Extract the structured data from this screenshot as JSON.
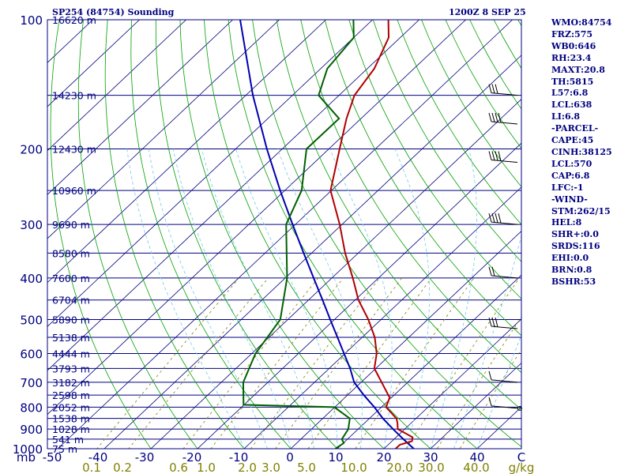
{
  "header": {
    "station": "SP254 (84754) Sounding",
    "time": "1200Z  8 SEP 25"
  },
  "indices": [
    "WMO:84754",
    "FRZ:575",
    "WB0:646",
    "RH:23.4",
    "MAXT:20.8",
    "TH:5815",
    "L57:6.8",
    "LCL:638",
    "LI:6.8",
    "-PARCEL-",
    "CAPE:45",
    "CINH:38125",
    "LCL:570",
    "CAP:6.8",
    "LFC:-1",
    "-WIND-",
    "STM:262/15",
    "HEL:8",
    "SHR+:0.0",
    "SRDS:116",
    "EHI:0.0",
    "BRN:0.8",
    "BSHR:53"
  ],
  "colors": {
    "isobar": "#000080",
    "isotherm": "#000080",
    "dry_adiabat": "#00a000",
    "moist_adiabat": "#87ceeb",
    "mixing_ratio": "#808000",
    "temperature": "#b00000",
    "dewpoint": "#006000",
    "parcel": "#0000b0",
    "text": "#000080",
    "mixing_label": "#808000"
  },
  "chart_data": {
    "type": "line",
    "pressure_ticks": [
      "100",
      "200",
      "300",
      "400",
      "500",
      "600",
      "700",
      "800",
      "900",
      "1000"
    ],
    "height_labels": [
      {
        "p": 100,
        "label": "16620 m"
      },
      {
        "p": 150,
        "label": "14230 m"
      },
      {
        "p": 200,
        "label": "12430 m"
      },
      {
        "p": 250,
        "label": "10960 m"
      },
      {
        "p": 300,
        "label": "9690 m"
      },
      {
        "p": 350,
        "label": "8580 m"
      },
      {
        "p": 400,
        "label": "7600 m"
      },
      {
        "p": 450,
        "label": "6704 m"
      },
      {
        "p": 500,
        "label": "5890 m"
      },
      {
        "p": 550,
        "label": "5138 m"
      },
      {
        "p": 600,
        "label": "4444 m"
      },
      {
        "p": 650,
        "label": "3793 m"
      },
      {
        "p": 700,
        "label": "3182 m"
      },
      {
        "p": 750,
        "label": "2598 m"
      },
      {
        "p": 800,
        "label": "2052 m"
      },
      {
        "p": 850,
        "label": "1538 m"
      },
      {
        "p": 900,
        "label": "1028 m"
      },
      {
        "p": 950,
        "label": "541 m"
      },
      {
        "p": 1000,
        "label": "75 m"
      }
    ],
    "temp_ticks": [
      "mb",
      "-50",
      "-40",
      "-30",
      "-20",
      "-10",
      "0",
      "10",
      "20",
      "30",
      "40",
      "C"
    ],
    "mixing_ratio_ticks": [
      "0.1",
      "0.2",
      "0.6",
      "1.0",
      "2.0",
      "3.0",
      "5.0",
      "10.0",
      "20.0",
      "30.0",
      "40.0",
      "g/kg"
    ],
    "temperature_profile": [
      {
        "p": 1000,
        "t": 22.5
      },
      {
        "p": 979,
        "t": 22.5
      },
      {
        "p": 960,
        "t": 24.3
      },
      {
        "p": 940,
        "t": 23.5
      },
      {
        "p": 900,
        "t": 18.5
      },
      {
        "p": 870,
        "t": 17
      },
      {
        "p": 850,
        "t": 15.8
      },
      {
        "p": 800,
        "t": 11
      },
      {
        "p": 760,
        "t": 9.6
      },
      {
        "p": 700,
        "t": 4.4
      },
      {
        "p": 650,
        "t": -0.3
      },
      {
        "p": 600,
        "t": -3.2
      },
      {
        "p": 550,
        "t": -7.3
      },
      {
        "p": 500,
        "t": -12.7
      },
      {
        "p": 450,
        "t": -19.3
      },
      {
        "p": 400,
        "t": -25.5
      },
      {
        "p": 350,
        "t": -32.8
      },
      {
        "p": 300,
        "t": -40.5
      },
      {
        "p": 250,
        "t": -50.2
      },
      {
        "p": 200,
        "t": -57.7
      },
      {
        "p": 170,
        "t": -63.1
      },
      {
        "p": 150,
        "t": -66.7
      },
      {
        "p": 130,
        "t": -68.5
      },
      {
        "p": 110,
        "t": -72.5
      },
      {
        "p": 100,
        "t": -76.6
      }
    ],
    "dewpoint_profile": [
      {
        "p": 1000,
        "t": 9.6
      },
      {
        "p": 970,
        "t": 10.1
      },
      {
        "p": 950,
        "t": 8.8
      },
      {
        "p": 900,
        "t": 7.9
      },
      {
        "p": 850,
        "t": 5.8
      },
      {
        "p": 800,
        "t": -0.1
      },
      {
        "p": 790,
        "t": -20.1
      },
      {
        "p": 700,
        "t": -25.3
      },
      {
        "p": 600,
        "t": -29.2
      },
      {
        "p": 560,
        "t": -30.1
      },
      {
        "p": 500,
        "t": -31.6
      },
      {
        "p": 400,
        "t": -39.6
      },
      {
        "p": 300,
        "t": -52
      },
      {
        "p": 250,
        "t": -56.4
      },
      {
        "p": 200,
        "t": -64.8
      },
      {
        "p": 170,
        "t": -64.7
      },
      {
        "p": 150,
        "t": -74.4
      },
      {
        "p": 130,
        "t": -78.6
      },
      {
        "p": 110,
        "t": -80
      },
      {
        "p": 100,
        "t": -84.1
      }
    ],
    "parcel_profile": [
      {
        "p": 1000,
        "t": 26.4
      },
      {
        "p": 950,
        "t": 22
      },
      {
        "p": 900,
        "t": 17.5
      },
      {
        "p": 850,
        "t": 12.9
      },
      {
        "p": 800,
        "t": 8.5
      },
      {
        "p": 750,
        "t": 3.5
      },
      {
        "p": 700,
        "t": -1.5
      },
      {
        "p": 650,
        "t": -5.5
      },
      {
        "p": 600,
        "t": -10.2
      },
      {
        "p": 550,
        "t": -15.3
      },
      {
        "p": 500,
        "t": -20.9
      },
      {
        "p": 450,
        "t": -27
      },
      {
        "p": 400,
        "t": -33.9
      },
      {
        "p": 350,
        "t": -41.7
      },
      {
        "p": 300,
        "t": -50.6
      },
      {
        "p": 250,
        "t": -61
      },
      {
        "p": 200,
        "t": -73.3
      },
      {
        "p": 150,
        "t": -88.5
      },
      {
        "p": 100,
        "t": -108.4
      }
    ],
    "wind_barbs": [
      {
        "p": 150,
        "spd": 25
      },
      {
        "p": 175,
        "spd": 50
      },
      {
        "p": 215,
        "spd": 50
      },
      {
        "p": 300,
        "spd": 35
      },
      {
        "p": 400,
        "spd": 20
      },
      {
        "p": 525,
        "spd": 25
      },
      {
        "p": 700,
        "spd": 10
      },
      {
        "p": 805,
        "spd": 5
      }
    ]
  }
}
